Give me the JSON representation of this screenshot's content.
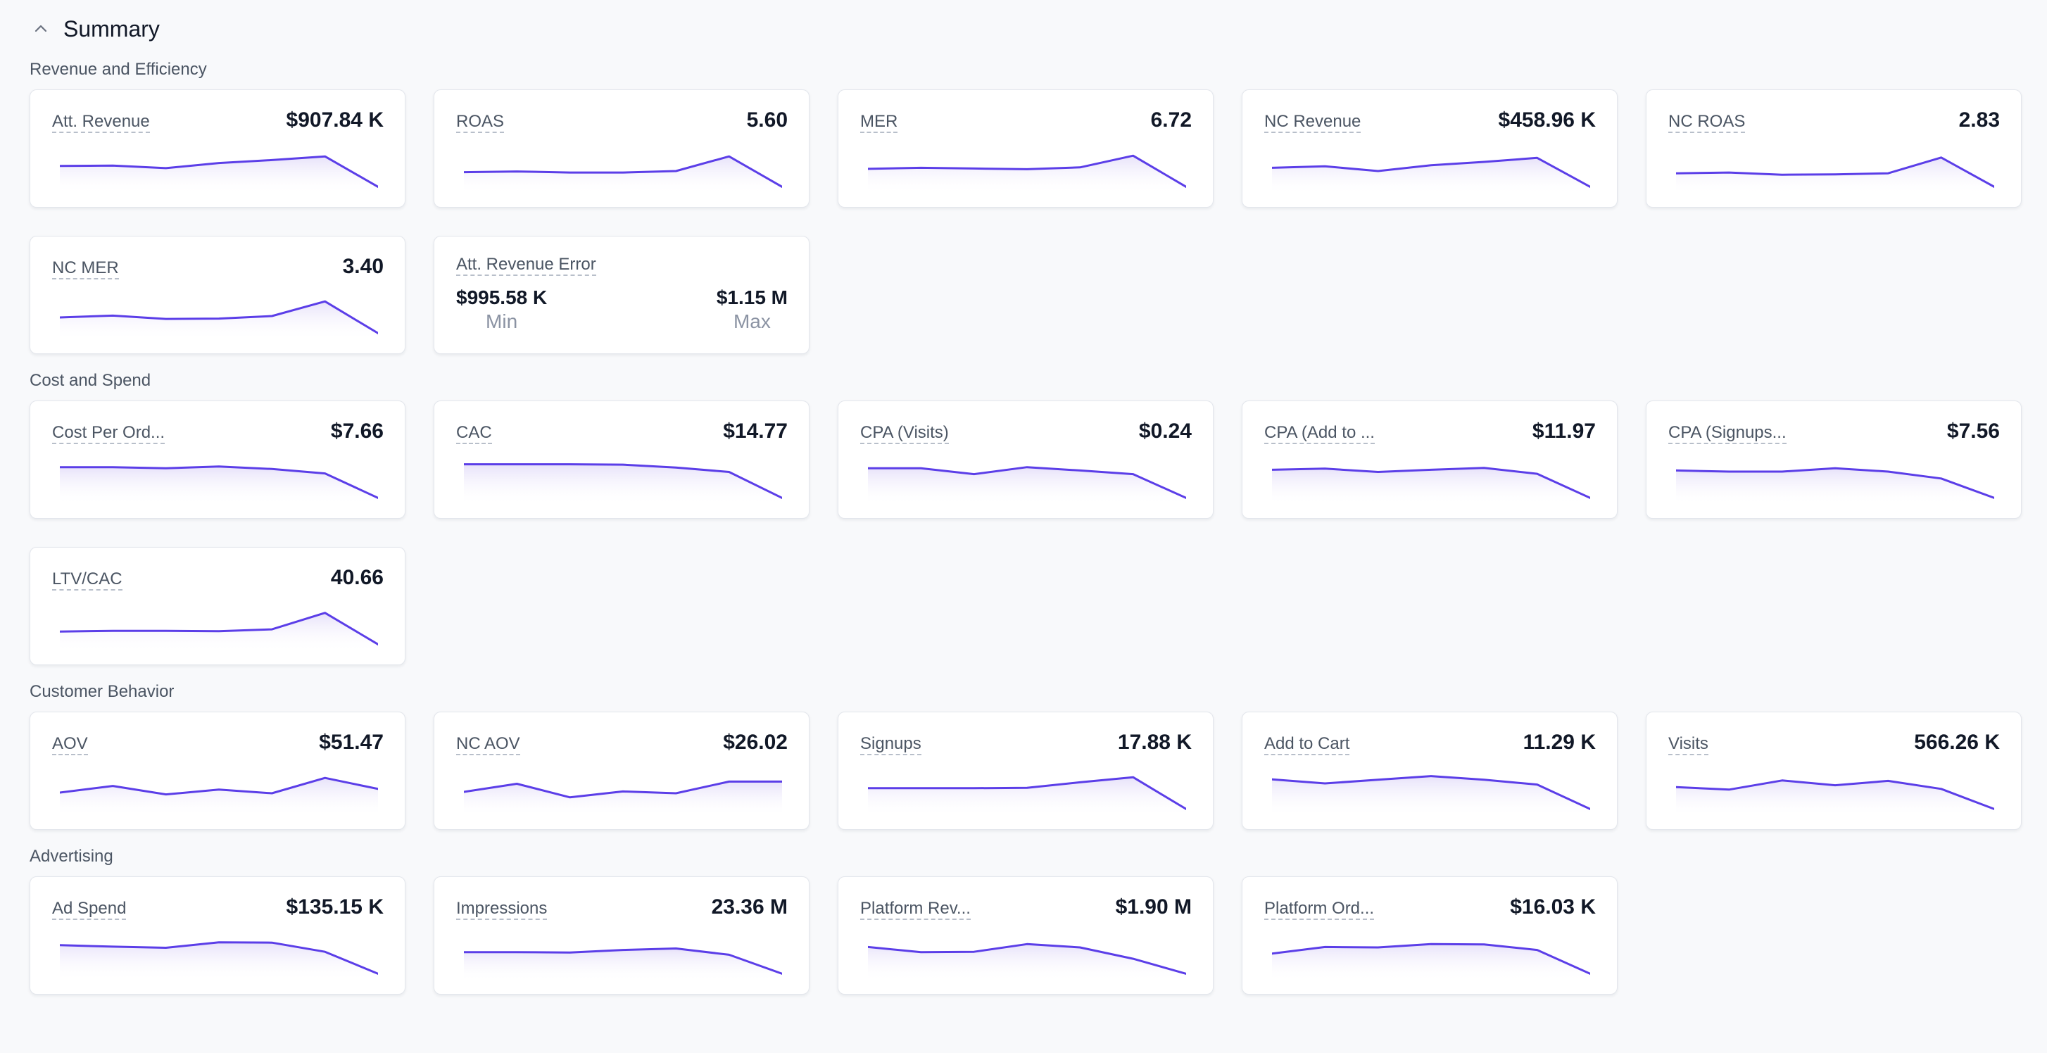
{
  "summary": {
    "title": "Summary"
  },
  "colors": {
    "line": "#5b3ee8",
    "fill_top": "#e4def9"
  },
  "sections": [
    {
      "title": "Revenue and Efficiency",
      "cards": [
        {
          "label": "Att. Revenue",
          "value": "$907.84 K",
          "trend": [
            0.62,
            0.63,
            0.56,
            0.7,
            0.78,
            0.88,
            0.05
          ]
        },
        {
          "label": "ROAS",
          "value": "5.60",
          "trend": [
            0.45,
            0.47,
            0.44,
            0.44,
            0.48,
            0.88,
            0.05
          ]
        },
        {
          "label": "MER",
          "value": "6.72",
          "trend": [
            0.54,
            0.57,
            0.55,
            0.53,
            0.58,
            0.9,
            0.05
          ]
        },
        {
          "label": "NC Revenue",
          "value": "$458.96 K",
          "trend": [
            0.57,
            0.61,
            0.48,
            0.64,
            0.73,
            0.84,
            0.05
          ]
        },
        {
          "label": "NC ROAS",
          "value": "2.83",
          "trend": [
            0.42,
            0.44,
            0.38,
            0.39,
            0.42,
            0.85,
            0.05
          ]
        },
        {
          "label": "NC MER",
          "value": "3.40",
          "trend": [
            0.48,
            0.53,
            0.44,
            0.45,
            0.52,
            0.92,
            0.05
          ]
        },
        {
          "label": "Att. Revenue Error",
          "type": "range",
          "min": "$995.58 K",
          "min_label": "Min",
          "max": "$1.15 M",
          "max_label": "Max"
        }
      ]
    },
    {
      "title": "Cost and Spend",
      "cards": [
        {
          "label": "Cost Per Ord...",
          "value": "$7.66",
          "trend": [
            0.89,
            0.89,
            0.86,
            0.91,
            0.84,
            0.72,
            0.05
          ]
        },
        {
          "label": "CAC",
          "value": "$14.77",
          "trend": [
            0.97,
            0.97,
            0.97,
            0.96,
            0.88,
            0.76,
            0.05
          ]
        },
        {
          "label": "CPA (Visits)",
          "value": "$0.24",
          "trend": [
            0.86,
            0.86,
            0.7,
            0.89,
            0.8,
            0.7,
            0.05
          ]
        },
        {
          "label": "CPA (Add to ...",
          "value": "$11.97",
          "trend": [
            0.82,
            0.85,
            0.76,
            0.82,
            0.87,
            0.71,
            0.05
          ]
        },
        {
          "label": "CPA (Signups...",
          "value": "$7.56",
          "trend": [
            0.8,
            0.77,
            0.77,
            0.86,
            0.77,
            0.58,
            0.05
          ]
        },
        {
          "label": "LTV/CAC",
          "value": "40.66",
          "trend": [
            0.4,
            0.42,
            0.42,
            0.41,
            0.46,
            0.91,
            0.05
          ]
        }
      ]
    },
    {
      "title": "Customer Behavior",
      "cards": [
        {
          "label": "AOV",
          "value": "$51.47",
          "trend": [
            0.5,
            0.68,
            0.45,
            0.58,
            0.48,
            0.9,
            0.6
          ]
        },
        {
          "label": "NC AOV",
          "value": "$26.02",
          "trend": [
            0.52,
            0.74,
            0.37,
            0.53,
            0.48,
            0.8,
            0.8
          ]
        },
        {
          "label": "Signups",
          "value": "17.88 K",
          "trend": [
            0.62,
            0.62,
            0.62,
            0.63,
            0.78,
            0.92,
            0.05
          ]
        },
        {
          "label": "Add to Cart",
          "value": "11.29 K",
          "trend": [
            0.86,
            0.75,
            0.85,
            0.95,
            0.85,
            0.72,
            0.05
          ]
        },
        {
          "label": "Visits",
          "value": "566.26 K",
          "trend": [
            0.65,
            0.58,
            0.83,
            0.7,
            0.82,
            0.6,
            0.05
          ]
        }
      ]
    },
    {
      "title": "Advertising",
      "cards": [
        {
          "label": "Ad Spend",
          "value": "$135.15 K",
          "trend": [
            0.83,
            0.79,
            0.76,
            0.91,
            0.9,
            0.65,
            0.05
          ]
        },
        {
          "label": "Impressions",
          "value": "23.36 M",
          "trend": [
            0.64,
            0.64,
            0.63,
            0.7,
            0.74,
            0.57,
            0.05
          ]
        },
        {
          "label": "Platform Rev...",
          "value": "$1.90 M",
          "trend": [
            0.78,
            0.64,
            0.65,
            0.86,
            0.77,
            0.46,
            0.05
          ]
        },
        {
          "label": "Platform Ord...",
          "value": "$16.03 K",
          "trend": [
            0.6,
            0.78,
            0.77,
            0.86,
            0.85,
            0.7,
            0.05
          ]
        }
      ]
    }
  ]
}
